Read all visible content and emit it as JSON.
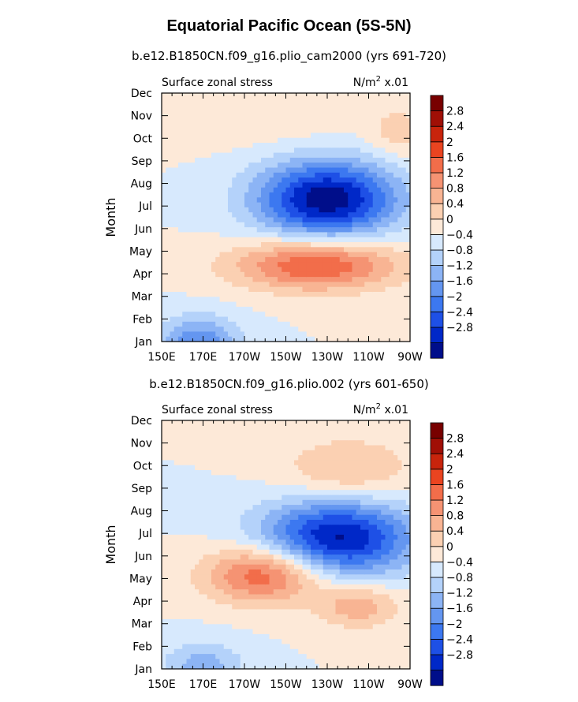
{
  "title": "Equatorial Pacific Ocean (5S-5N)",
  "palette": [
    "#000e8a",
    "#0028c8",
    "#1e50e6",
    "#3c78f0",
    "#6496f0",
    "#8cb4f5",
    "#b4d2fa",
    "#d7e9fd",
    "#fde9d8",
    "#fbd0b2",
    "#f8b493",
    "#f59373",
    "#f26d4a",
    "#ea4420",
    "#c8240c",
    "#a00f06",
    "#780000"
  ],
  "chart_data": [
    {
      "type": "heatmap",
      "subtitle": "b.e12.B1850CN.f09_g16.plio_cam2000 (yrs 691-720)",
      "variable": "Surface zonal stress",
      "units": "N/m",
      "units_sup": "2",
      "scale": "x.01",
      "ylabel": "Month",
      "xticks": [
        "150E",
        "170E",
        "170W",
        "150W",
        "130W",
        "110W",
        "90W"
      ],
      "yticks": [
        "Jan",
        "Feb",
        "Mar",
        "Apr",
        "May",
        "Jun",
        "Jul",
        "Aug",
        "Sep",
        "Oct",
        "Nov",
        "Dec"
      ],
      "colorbar_labels": [
        "2.8",
        "2.4",
        "2",
        "1.6",
        "1.2",
        "0.8",
        "0.4",
        "0",
        "-0.4",
        "-0.8",
        "-1.2",
        "-1.6",
        "-2",
        "-2.4",
        "-2.8"
      ],
      "levels": [
        -3.2,
        -2.8,
        -2.4,
        -2.0,
        -1.6,
        -1.2,
        -0.8,
        -0.4,
        0,
        0.4,
        0.8,
        1.2,
        1.6,
        2.0,
        2.4,
        2.8,
        3.2
      ],
      "features": [
        {
          "lon": 230,
          "month": 7.3,
          "slon": 24,
          "smon": 1.2,
          "amp": -3.1
        },
        {
          "lon": 225,
          "month": 4.4,
          "slon": 28,
          "smon": 0.8,
          "amp": 2.1
        },
        {
          "lon": 168,
          "month": 1.0,
          "slon": 14,
          "smon": 0.8,
          "amp": -1.5
        },
        {
          "lon": 265,
          "month": 10.2,
          "slon": 10,
          "smon": 0.8,
          "amp": 0.6
        },
        {
          "lon": 185,
          "month": 11.0,
          "slon": 45,
          "smon": 0.9,
          "amp": 0.4
        }
      ]
    },
    {
      "type": "heatmap",
      "subtitle": "b.e12.B1850CN.f09_g16.plio.002 (yrs 601-650)",
      "variable": "Surface zonal stress",
      "units": "N/m",
      "units_sup": "2",
      "scale": "x.01",
      "ylabel": "Month",
      "xticks": [
        "150E",
        "170E",
        "170W",
        "150W",
        "130W",
        "110W",
        "90W"
      ],
      "yticks": [
        "Jan",
        "Feb",
        "Mar",
        "Apr",
        "May",
        "Jun",
        "Jul",
        "Aug",
        "Sep",
        "Oct",
        "Nov",
        "Dec"
      ],
      "colorbar_labels": [
        "2.8",
        "2.4",
        "2",
        "1.6",
        "1.2",
        "0.8",
        "0.4",
        "0",
        "-0.4",
        "-0.8",
        "-1.2",
        "-1.6",
        "-2",
        "-2.4",
        "-2.8"
      ],
      "levels": [
        -3.2,
        -2.8,
        -2.4,
        -2.0,
        -1.6,
        -1.2,
        -0.8,
        -0.4,
        0,
        0.4,
        0.8,
        1.2,
        1.6,
        2.0,
        2.4,
        2.8,
        3.2
      ],
      "features": [
        {
          "lon": 235,
          "month": 6.8,
          "slon": 26,
          "smon": 1.2,
          "amp": -2.9
        },
        {
          "lon": 200,
          "month": 5.2,
          "slon": 20,
          "smon": 0.9,
          "amp": 2.1
        },
        {
          "lon": 245,
          "month": 3.8,
          "slon": 14,
          "smon": 0.7,
          "amp": 1.1
        },
        {
          "lon": 240,
          "month": 9.8,
          "slon": 22,
          "smon": 1.0,
          "amp": 0.9
        },
        {
          "lon": 170,
          "month": 1.1,
          "slon": 14,
          "smon": 0.8,
          "amp": -1.0
        }
      ]
    }
  ]
}
